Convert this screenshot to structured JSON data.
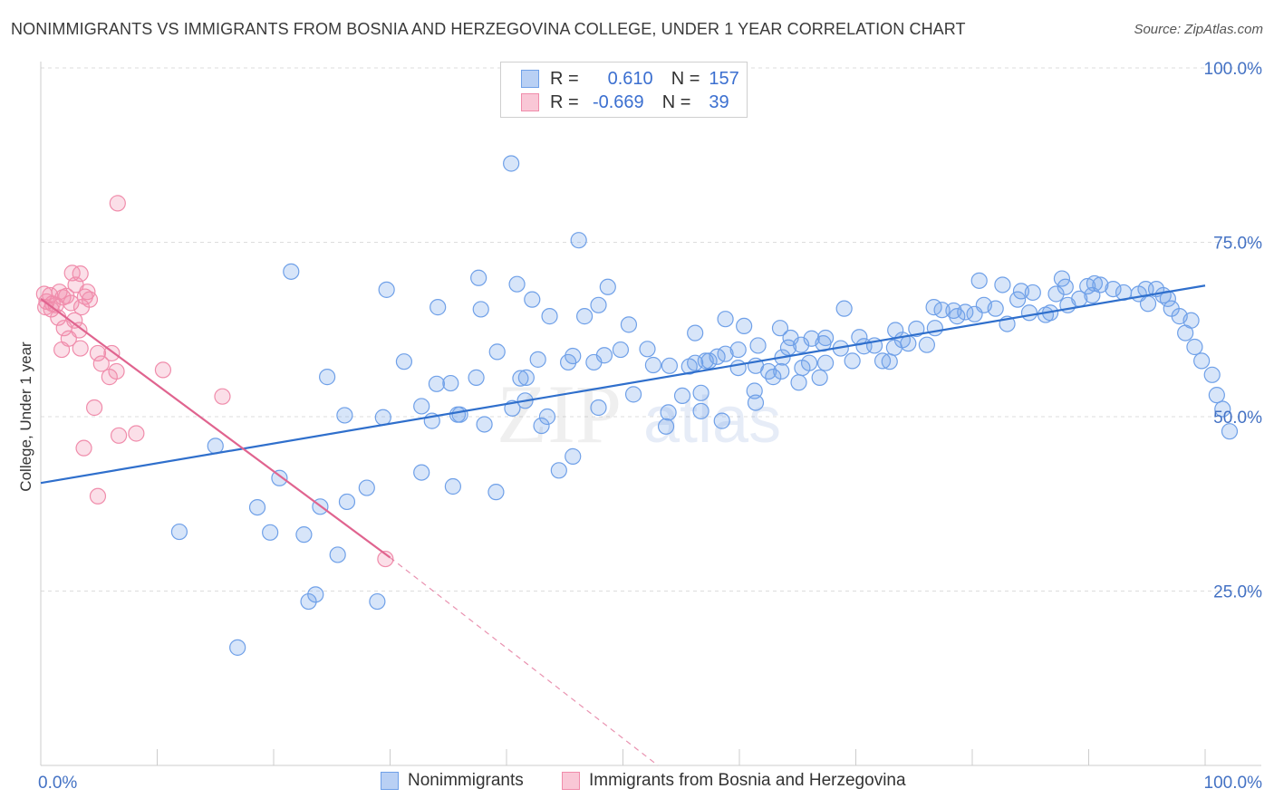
{
  "header": {
    "title": "NONIMMIGRANTS VS IMMIGRANTS FROM BOSNIA AND HERZEGOVINA COLLEGE, UNDER 1 YEAR CORRELATION CHART",
    "source": "Source: ZipAtlas.com"
  },
  "legend": {
    "rows": [
      {
        "r_label": "R =",
        "r_value": "0.610",
        "n_label": "N =",
        "n_value": "157",
        "color": "#6fa0e8"
      },
      {
        "r_label": "R =",
        "r_value": "-0.669",
        "n_label": "N =",
        "n_value": "39",
        "color": "#f08cab"
      }
    ]
  },
  "bottom_legend": {
    "items": [
      {
        "label": "Nonimmigrants",
        "color": "#6fa0e8"
      },
      {
        "label": "Immigrants from Bosnia and Herzegovina",
        "color": "#f08cab"
      }
    ]
  },
  "watermark": {
    "zip": "ZIP",
    "atlas": "atlas"
  },
  "colors": {
    "blue_point": "#6fa0e8",
    "blue_line": "#2f6fcc",
    "pink_point": "#f08cab",
    "pink_line": "#e0648f",
    "tick_text": "#4472c4",
    "grid": "#dddddd"
  },
  "chart_data": {
    "type": "scatter",
    "title": "NONIMMIGRANTS VS IMMIGRANTS FROM BOSNIA AND HERZEGOVINA COLLEGE, UNDER 1 YEAR CORRELATION CHART",
    "xlabel": "",
    "ylabel": "College, Under 1 year",
    "xlim": [
      0,
      100
    ],
    "ylim": [
      0,
      100
    ],
    "x_tick_labels": [
      "0.0%",
      "100.0%"
    ],
    "y_tick_labels": [
      "25.0%",
      "50.0%",
      "75.0%",
      "100.0%"
    ],
    "y_ticks": [
      25,
      50,
      75,
      100
    ],
    "grid": true,
    "legend_position": "top-center",
    "series": [
      {
        "name": "Nonimmigrants",
        "r": 0.61,
        "n": 157,
        "trend": {
          "x": [
            0,
            100
          ],
          "y": [
            40.5,
            68.8
          ],
          "style": "solid"
        },
        "points": [
          [
            40.4,
            86.3
          ],
          [
            46.2,
            75.3
          ],
          [
            21.5,
            70.8
          ],
          [
            29.7,
            68.2
          ],
          [
            37.6,
            69.9
          ],
          [
            42.2,
            66.8
          ],
          [
            34.1,
            65.7
          ],
          [
            37.8,
            65.4
          ],
          [
            40.9,
            69.0
          ],
          [
            48.7,
            68.6
          ],
          [
            46.7,
            64.4
          ],
          [
            47.9,
            66.0
          ],
          [
            50.5,
            63.2
          ],
          [
            43.7,
            64.4
          ],
          [
            39.2,
            59.3
          ],
          [
            31.2,
            57.9
          ],
          [
            29.4,
            49.9
          ],
          [
            24.6,
            55.7
          ],
          [
            26.1,
            50.2
          ],
          [
            32.7,
            51.5
          ],
          [
            33.6,
            49.4
          ],
          [
            35.8,
            50.3
          ],
          [
            37.4,
            55.6
          ],
          [
            35.2,
            54.8
          ],
          [
            34.0,
            54.7
          ],
          [
            41.2,
            55.5
          ],
          [
            41.7,
            55.6
          ],
          [
            41.6,
            52.3
          ],
          [
            40.5,
            51.2
          ],
          [
            43.5,
            50.0
          ],
          [
            43.0,
            48.7
          ],
          [
            38.1,
            48.9
          ],
          [
            36.0,
            50.3
          ],
          [
            47.9,
            51.3
          ],
          [
            50.9,
            53.2
          ],
          [
            45.3,
            57.8
          ],
          [
            45.7,
            58.7
          ],
          [
            42.7,
            58.2
          ],
          [
            47.5,
            57.8
          ],
          [
            48.4,
            58.8
          ],
          [
            49.8,
            59.6
          ],
          [
            52.1,
            59.7
          ],
          [
            52.6,
            57.4
          ],
          [
            54.0,
            57.3
          ],
          [
            55.7,
            57.2
          ],
          [
            53.9,
            50.6
          ],
          [
            53.7,
            48.6
          ],
          [
            56.7,
            53.4
          ],
          [
            56.7,
            50.8
          ],
          [
            58.5,
            49.4
          ],
          [
            56.2,
            57.7
          ],
          [
            59.9,
            57.0
          ],
          [
            61.4,
            57.3
          ],
          [
            62.5,
            56.5
          ],
          [
            61.4,
            52.0
          ],
          [
            61.3,
            53.7
          ],
          [
            63.6,
            56.5
          ],
          [
            62.9,
            55.7
          ],
          [
            65.1,
            54.9
          ],
          [
            66.9,
            55.6
          ],
          [
            65.4,
            57.0
          ],
          [
            67.4,
            57.7
          ],
          [
            69.7,
            58.0
          ],
          [
            72.9,
            57.9
          ],
          [
            71.6,
            60.2
          ],
          [
            70.3,
            61.4
          ],
          [
            67.4,
            61.3
          ],
          [
            64.4,
            61.3
          ],
          [
            61.6,
            60.2
          ],
          [
            57.4,
            58.0
          ],
          [
            58.8,
            59.0
          ],
          [
            56.2,
            62.0
          ],
          [
            58.8,
            64.0
          ],
          [
            63.5,
            62.7
          ],
          [
            64.2,
            59.9
          ],
          [
            65.3,
            60.3
          ],
          [
            66.2,
            61.2
          ],
          [
            67.2,
            60.5
          ],
          [
            68.7,
            59.8
          ],
          [
            70.7,
            60.1
          ],
          [
            72.3,
            58.0
          ],
          [
            73.3,
            59.9
          ],
          [
            74.0,
            61.0
          ],
          [
            75.2,
            62.6
          ],
          [
            76.1,
            60.3
          ],
          [
            76.8,
            62.7
          ],
          [
            77.4,
            65.3
          ],
          [
            78.4,
            65.2
          ],
          [
            79.4,
            65.0
          ],
          [
            80.2,
            64.7
          ],
          [
            81.0,
            66.0
          ],
          [
            82.0,
            65.5
          ],
          [
            83.0,
            63.3
          ],
          [
            83.9,
            66.8
          ],
          [
            84.9,
            64.9
          ],
          [
            85.2,
            67.8
          ],
          [
            86.3,
            64.6
          ],
          [
            87.2,
            67.6
          ],
          [
            87.7,
            69.8
          ],
          [
            88.2,
            66.0
          ],
          [
            89.2,
            66.9
          ],
          [
            90.3,
            67.4
          ],
          [
            91.0,
            68.9
          ],
          [
            92.1,
            68.3
          ],
          [
            93.0,
            67.8
          ],
          [
            94.3,
            67.6
          ],
          [
            95.1,
            66.2
          ],
          [
            95.8,
            68.3
          ],
          [
            96.4,
            67.4
          ],
          [
            97.1,
            65.5
          ],
          [
            97.8,
            64.4
          ],
          [
            98.3,
            62.0
          ],
          [
            99.1,
            60.0
          ],
          [
            99.7,
            58.0
          ],
          [
            100.6,
            56.0
          ],
          [
            101.0,
            53.1
          ],
          [
            101.5,
            51.1
          ],
          [
            102.1,
            47.9
          ],
          [
            88.0,
            68.6
          ],
          [
            89.9,
            68.7
          ],
          [
            90.5,
            69.1
          ],
          [
            94.9,
            68.3
          ],
          [
            96.8,
            66.9
          ],
          [
            98.8,
            63.8
          ],
          [
            82.6,
            68.9
          ],
          [
            80.6,
            69.5
          ],
          [
            84.2,
            68.0
          ],
          [
            86.7,
            64.9
          ],
          [
            78.7,
            64.4
          ],
          [
            76.7,
            65.7
          ],
          [
            74.5,
            60.5
          ],
          [
            73.4,
            62.4
          ],
          [
            69.0,
            65.5
          ],
          [
            66.0,
            57.7
          ],
          [
            63.7,
            58.5
          ],
          [
            60.4,
            63.0
          ],
          [
            59.9,
            59.6
          ],
          [
            58.1,
            58.6
          ],
          [
            57.1,
            58.0
          ],
          [
            55.1,
            53.0
          ],
          [
            45.7,
            44.3
          ],
          [
            44.5,
            42.3
          ],
          [
            39.1,
            39.2
          ],
          [
            35.4,
            40.0
          ],
          [
            32.7,
            42.0
          ],
          [
            28.0,
            39.8
          ],
          [
            26.3,
            37.8
          ],
          [
            24.0,
            37.1
          ],
          [
            20.5,
            41.2
          ],
          [
            18.6,
            37.0
          ],
          [
            15.0,
            45.8
          ],
          [
            11.9,
            33.5
          ],
          [
            19.7,
            33.4
          ],
          [
            22.6,
            33.1
          ],
          [
            25.5,
            30.2
          ],
          [
            28.9,
            23.5
          ],
          [
            23.0,
            23.5
          ],
          [
            23.6,
            24.5
          ],
          [
            16.9,
            16.9
          ]
        ]
      },
      {
        "name": "Immigrants from Bosnia and Herzegovina",
        "r": -0.669,
        "n": 39,
        "trend": {
          "x": [
            0,
            30
          ],
          "y": [
            66.9,
            29.8
          ],
          "style": "solid",
          "dashed_extension_to": [
            53,
            0
          ]
        },
        "points": [
          [
            0.3,
            67.6
          ],
          [
            0.5,
            66.5
          ],
          [
            0.8,
            67.4
          ],
          [
            1.0,
            66.2
          ],
          [
            1.3,
            66.0
          ],
          [
            1.6,
            67.9
          ],
          [
            1.9,
            67.1
          ],
          [
            2.2,
            67.3
          ],
          [
            0.4,
            65.7
          ],
          [
            0.9,
            65.4
          ],
          [
            1.5,
            64.2
          ],
          [
            2.0,
            62.7
          ],
          [
            2.4,
            61.2
          ],
          [
            1.8,
            59.6
          ],
          [
            2.9,
            63.8
          ],
          [
            3.3,
            62.4
          ],
          [
            3.5,
            65.7
          ],
          [
            3.8,
            67.2
          ],
          [
            4.2,
            66.8
          ],
          [
            2.6,
            66.3
          ],
          [
            2.7,
            70.6
          ],
          [
            3.4,
            70.5
          ],
          [
            3.0,
            68.9
          ],
          [
            4.0,
            67.9
          ],
          [
            5.2,
            57.6
          ],
          [
            4.9,
            59.1
          ],
          [
            6.1,
            59.1
          ],
          [
            6.5,
            56.5
          ],
          [
            5.9,
            55.7
          ],
          [
            3.4,
            59.8
          ],
          [
            4.6,
            51.3
          ],
          [
            3.7,
            45.5
          ],
          [
            6.7,
            47.3
          ],
          [
            8.2,
            47.6
          ],
          [
            10.5,
            56.7
          ],
          [
            15.6,
            52.9
          ],
          [
            4.9,
            38.6
          ],
          [
            6.6,
            80.6
          ],
          [
            29.6,
            29.6
          ]
        ]
      }
    ]
  }
}
